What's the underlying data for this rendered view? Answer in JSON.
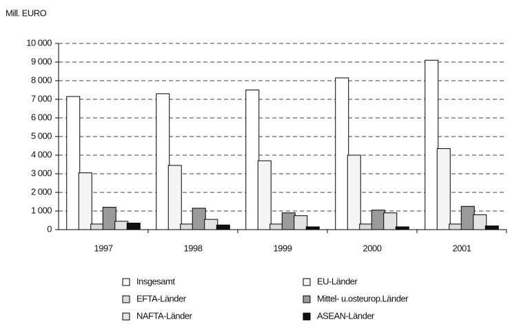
{
  "chart_data": {
    "type": "bar",
    "title": "Mill. EURO",
    "categories": [
      "1997",
      "1998",
      "1999",
      "2000",
      "2001"
    ],
    "series": [
      {
        "name": "Insgesamt",
        "color": "#ffffff",
        "values": [
          7150,
          7300,
          7500,
          8150,
          9100
        ]
      },
      {
        "name": "EU-Länder",
        "color": "#f4f4f4",
        "values": [
          3050,
          3450,
          3700,
          4000,
          4350
        ]
      },
      {
        "name": "EFTA-Länder",
        "color": "#dcdcdc",
        "values": [
          300,
          300,
          300,
          300,
          300
        ]
      },
      {
        "name": "Mittel- u.osteurop.Länder",
        "color": "#9a9a9a",
        "values": [
          1200,
          1150,
          900,
          1050,
          1250
        ]
      },
      {
        "name": "NAFTA-Länder",
        "color": "#e4e4e4",
        "values": [
          450,
          550,
          750,
          900,
          800
        ]
      },
      {
        "name": "ASEAN-Länder",
        "color": "#111111",
        "values": [
          350,
          250,
          150,
          150,
          200
        ]
      }
    ],
    "ylim": [
      0,
      10000
    ],
    "yticks": [
      0,
      {
        "value": 1000,
        "label": "1 000"
      },
      {
        "value": 2000,
        "label": "2 000"
      },
      {
        "value": 3000,
        "label": "3 000"
      },
      {
        "value": 4000,
        "label": "4 000"
      },
      {
        "value": 5000,
        "label": "5 000"
      },
      {
        "value": 6000,
        "label": "6 000"
      },
      {
        "value": 7000,
        "label": "7 000"
      },
      {
        "value": 8000,
        "label": "8 000"
      },
      {
        "value": 9000,
        "label": "9 000"
      },
      {
        "value": 10000,
        "label": "10 000"
      }
    ],
    "grid": true
  }
}
